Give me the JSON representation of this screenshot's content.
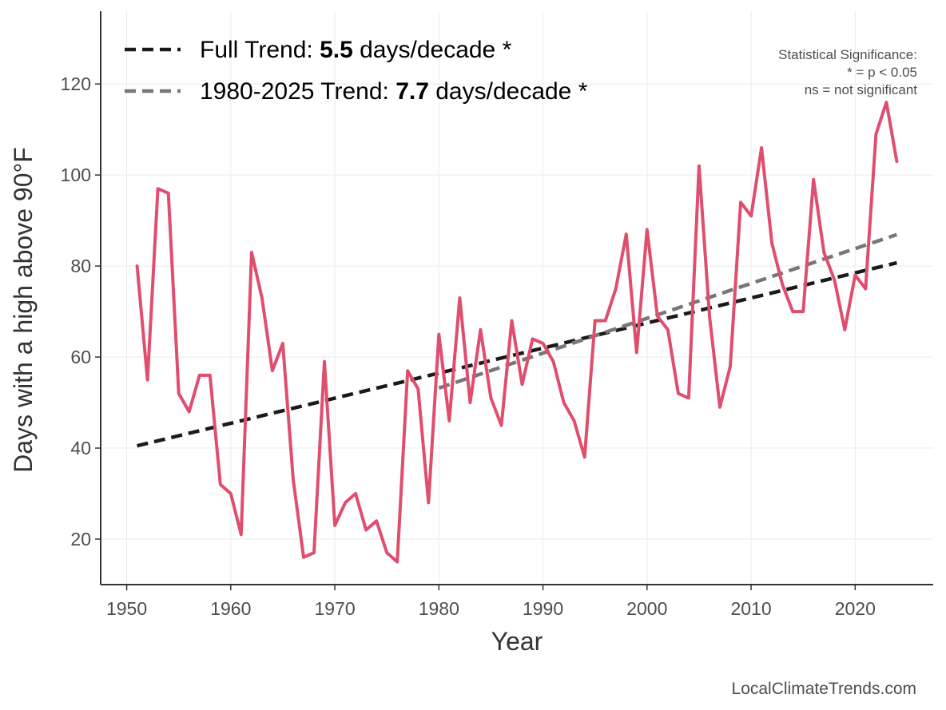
{
  "chart_data": {
    "type": "line",
    "title": "",
    "xlabel": "Year",
    "ylabel": "Days with a high above 90°F",
    "xlim": [
      1947.5,
      2027.5
    ],
    "ylim": [
      10,
      136
    ],
    "x_ticks": [
      1950,
      1960,
      1970,
      1980,
      1990,
      2000,
      2010,
      2020
    ],
    "y_ticks": [
      20,
      40,
      60,
      80,
      100,
      120
    ],
    "grid": true,
    "legend_position": "top-left",
    "series": [
      {
        "color": "#e04e6e",
        "x": [
          1951,
          1952,
          1953,
          1954,
          1955,
          1956,
          1957,
          1958,
          1959,
          1960,
          1961,
          1962,
          1963,
          1964,
          1965,
          1966,
          1967,
          1968,
          1969,
          1970,
          1971,
          1972,
          1973,
          1974,
          1975,
          1976,
          1977,
          1978,
          1979,
          1980,
          1981,
          1982,
          1983,
          1984,
          1985,
          1986,
          1987,
          1988,
          1989,
          1990,
          1991,
          1992,
          1993,
          1994,
          1995,
          1996,
          1997,
          1998,
          1999,
          2000,
          2001,
          2002,
          2003,
          2004,
          2005,
          2006,
          2007,
          2008,
          2009,
          2010,
          2011,
          2012,
          2013,
          2014,
          2015,
          2016,
          2017,
          2018,
          2019,
          2020,
          2021,
          2022,
          2023,
          2024
        ],
        "y": [
          80,
          55,
          97,
          96,
          52,
          48,
          56,
          56,
          32,
          30,
          21,
          83,
          73,
          57,
          63,
          33,
          16,
          17,
          59,
          23,
          28,
          30,
          22,
          24,
          17,
          15,
          57,
          53,
          28,
          65,
          46,
          73,
          50,
          66,
          51,
          45,
          68,
          54,
          64,
          63,
          59,
          50,
          46,
          38,
          68,
          68,
          75,
          87,
          61,
          88,
          69,
          66,
          52,
          51,
          102,
          69,
          49,
          58,
          94,
          91,
          106,
          85,
          76,
          70,
          70,
          99,
          83,
          77,
          66,
          78,
          75,
          109,
          116,
          103
        ]
      }
    ],
    "trends": [
      {
        "label": "Full Trend: ",
        "value": "5.5",
        "suffix": " days/decade *",
        "color": "#1a1a1a",
        "x": [
          1951,
          2024
        ],
        "y": [
          40.5,
          80.7
        ]
      },
      {
        "label": "1980-2025 Trend: ",
        "value": "7.7",
        "suffix": " days/decade *",
        "color": "#777777",
        "x": [
          1980,
          2024
        ],
        "y": [
          53.2,
          86.9
        ]
      }
    ],
    "annotation": [
      "Statistical Significance:",
      "* = p < 0.05",
      "ns = not significant"
    ],
    "credit": "LocalClimateTrends.com"
  }
}
